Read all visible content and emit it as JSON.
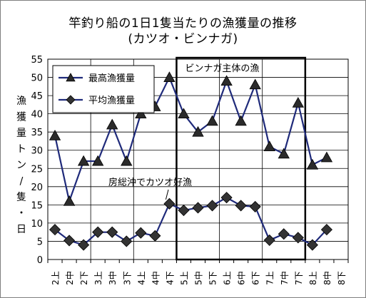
{
  "chart_data": {
    "type": "line",
    "title": "竿釣り船の1日1隻当たりの漁獲量の推移",
    "subtitle": "(カツオ・ビンナガ)",
    "ylabel": "漁獲量(トン/隻・日)",
    "xlabel": "",
    "ylim": [
      0,
      55
    ],
    "yticks": [
      0,
      5,
      10,
      15,
      20,
      25,
      30,
      35,
      40,
      45,
      50,
      55
    ],
    "grid": true,
    "legend_position": "top-left",
    "categories": [
      "2上",
      "2中",
      "2下",
      "3上",
      "3中",
      "3下",
      "4上",
      "4中",
      "4下",
      "5上",
      "5中",
      "5下",
      "6上",
      "6中",
      "6下",
      "7上",
      "7中",
      "7下",
      "8上",
      "8中",
      "8下"
    ],
    "series": [
      {
        "name": "最高漁獲量",
        "marker": "triangle",
        "color": "#1f2a7a",
        "values": [
          34,
          16,
          27,
          27,
          37,
          27,
          40,
          42,
          50,
          40,
          35,
          38,
          49,
          38,
          48,
          31,
          29,
          43,
          26,
          28,
          null
        ]
      },
      {
        "name": "平均漁獲量",
        "marker": "diamond",
        "color": "#1f2a7a",
        "values": [
          8.2,
          5.2,
          4.0,
          7.5,
          7.5,
          5.0,
          7.3,
          6.5,
          15.3,
          13.5,
          14.2,
          14.8,
          17.0,
          14.8,
          14.5,
          5.3,
          7.0,
          6.0,
          4.0,
          8.2,
          null
        ]
      }
    ],
    "annotations": [
      {
        "text": "房総沖でカツオ好漁"
      },
      {
        "text": "ビンナガ主体の漁"
      }
    ]
  }
}
